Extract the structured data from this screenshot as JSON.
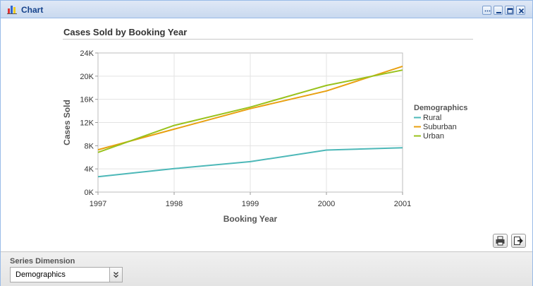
{
  "window": {
    "title": "Chart",
    "icon": "bar-chart-icon"
  },
  "tools": [
    "more-tool-icon",
    "minimize-icon",
    "maximize-icon",
    "close-icon"
  ],
  "chart_data": {
    "type": "line",
    "title": "Cases Sold by Booking Year",
    "xlabel": "Booking Year",
    "ylabel": "Cases Sold",
    "x": [
      1997,
      1998,
      1999,
      2000,
      2001
    ],
    "xticks": [
      "1997",
      "1998",
      "1999",
      "2000",
      "2001"
    ],
    "yticks": [
      "0K",
      "4K",
      "8K",
      "12K",
      "16K",
      "20K",
      "24K"
    ],
    "ylim": [
      0,
      24000
    ],
    "grid": true,
    "legend_title": "Demographics",
    "legend_position": "right",
    "series": [
      {
        "name": "Rural",
        "color": "#4db8b8",
        "values": [
          2650,
          4050,
          5250,
          7250,
          7650
        ]
      },
      {
        "name": "Suburban",
        "color": "#e8a010",
        "values": [
          7300,
          10850,
          14400,
          17450,
          21700
        ]
      },
      {
        "name": "Urban",
        "color": "#99c21c",
        "values": [
          6850,
          11500,
          14650,
          18400,
          21050
        ]
      }
    ]
  },
  "actions": {
    "print": "print-icon",
    "export": "export-icon"
  },
  "footer": {
    "label": "Series Dimension",
    "select_value": "Demographics"
  }
}
